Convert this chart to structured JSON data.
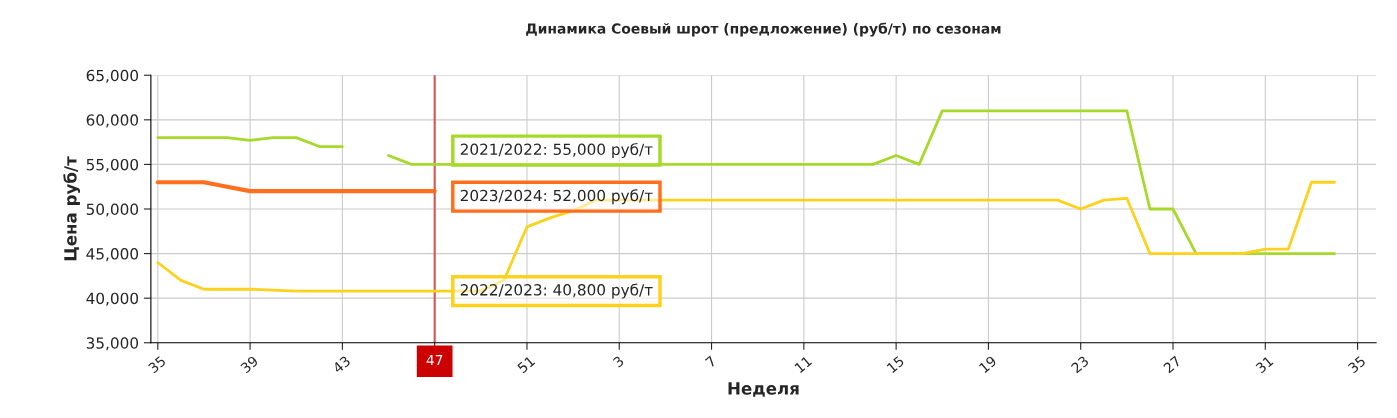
{
  "chart_data": {
    "type": "line",
    "title": "Динамика Соевый шрот (предложение) (руб/т) по сезонам",
    "xlabel": "Неделя",
    "ylabel": "Цена руб/т",
    "categories": [
      "35",
      null,
      null,
      null,
      "39",
      null,
      null,
      null,
      "43",
      null,
      null,
      null,
      "47",
      null,
      null,
      null,
      "51",
      null,
      null,
      null,
      "3",
      null,
      null,
      null,
      "7",
      null,
      null,
      null,
      "11",
      null,
      null,
      null,
      "15",
      null,
      null,
      null,
      "19",
      null,
      null,
      null,
      "23",
      null,
      null,
      null,
      "27",
      null,
      null,
      null,
      "31",
      null,
      null,
      null,
      "35"
    ],
    "series": [
      {
        "color": "#a6d92b",
        "values": [
          58000,
          58000,
          58000,
          58000,
          57700,
          58000,
          58000,
          57000,
          57000,
          null,
          56000,
          55000,
          55000,
          55000,
          55000,
          55000,
          55000,
          55000,
          55000,
          55000,
          55000,
          55000,
          55000,
          55000,
          55000,
          55000,
          55000,
          55000,
          55000,
          55000,
          55000,
          55000,
          56000,
          55000,
          61000,
          61000,
          61000,
          61000,
          61000,
          61000,
          61000,
          61000,
          61000,
          50000,
          50000,
          45000,
          45000,
          45000,
          45000,
          45000,
          45000,
          45000,
          null
        ]
      },
      {
        "color": "#ff6f1e",
        "values": [
          53000,
          53000,
          53000,
          52500,
          52000,
          52000,
          52000,
          52000,
          52000,
          52000,
          52000,
          52000,
          52000,
          null,
          null,
          null,
          null,
          null,
          null,
          null,
          null,
          null,
          null,
          null,
          null,
          null,
          null,
          null,
          null,
          null,
          null,
          null,
          null,
          null,
          null,
          null,
          null,
          null,
          null,
          null,
          null,
          null,
          null,
          null,
          null,
          null,
          null,
          null,
          null,
          null,
          null,
          null,
          null
        ]
      },
      {
        "color": "#fcd21c",
        "values": [
          44000,
          42000,
          41000,
          41000,
          41000,
          40900,
          40800,
          40800,
          40800,
          40800,
          40800,
          40800,
          40800,
          40800,
          40800,
          42000,
          48000,
          49000,
          49800,
          51000,
          51000,
          51000,
          51000,
          51000,
          51000,
          51000,
          51000,
          51000,
          51000,
          51000,
          51000,
          51000,
          51000,
          51000,
          51000,
          51000,
          51000,
          51000,
          51000,
          51000,
          50000,
          51000,
          51200,
          45000,
          45000,
          45000,
          45000,
          45000,
          45500,
          45500,
          53000,
          53000,
          null
        ]
      }
    ],
    "ylim": [
      35000,
      65000
    ],
    "yticks": [
      {
        "value": 35000,
        "label": "35,000"
      },
      {
        "value": 40000,
        "label": "40,000"
      },
      {
        "value": 45000,
        "label": "45,000"
      },
      {
        "value": 50000,
        "label": "50,000"
      },
      {
        "value": 55000,
        "label": "55,000"
      },
      {
        "value": 60000,
        "label": "60,000"
      },
      {
        "value": 65000,
        "label": "65,000"
      }
    ],
    "grid": true,
    "marker": "none",
    "line_style": "solid",
    "ref_lines": [
      {
        "axis": "x",
        "value": "47",
        "color": "#d9534f"
      }
    ],
    "value_labels": [
      [
        null,
        null,
        null,
        null,
        null,
        null,
        null,
        null,
        null,
        null,
        null,
        null,
        "2021/2022: 55,000 руб/т"
      ],
      [
        null,
        null,
        null,
        null,
        null,
        null,
        null,
        null,
        null,
        null,
        null,
        null,
        "2023/2024: 52,000 руб/т"
      ],
      [
        null,
        null,
        null,
        null,
        null,
        null,
        null,
        null,
        null,
        null,
        null,
        null,
        "2022/2023: 40,800 руб/т"
      ]
    ]
  }
}
